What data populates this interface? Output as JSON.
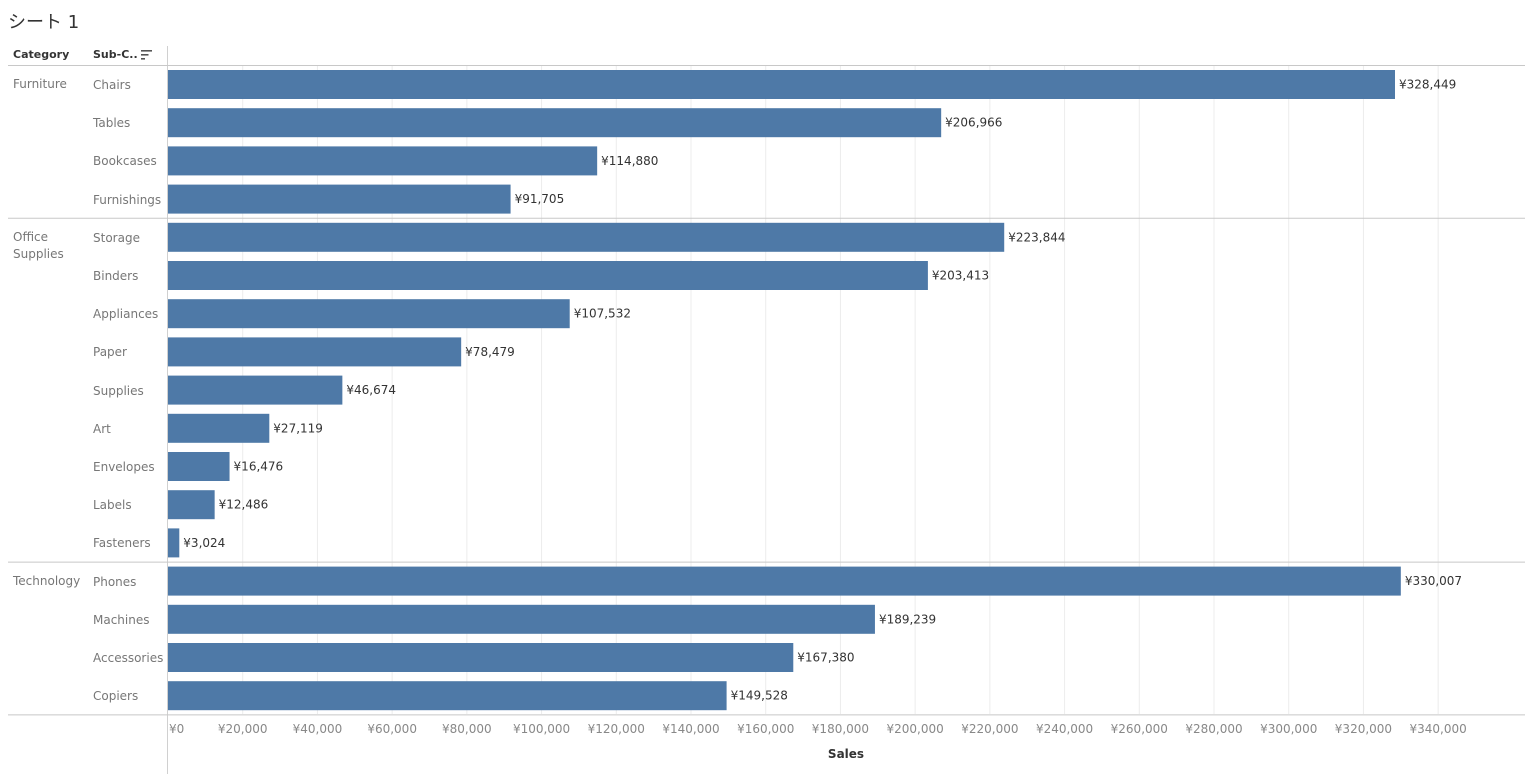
{
  "sheet": {
    "title": "シート 1"
  },
  "headers": {
    "category": "Category",
    "subcategory": "Sub-C.."
  },
  "colors": {
    "bar": "#4e79a7",
    "grid": "#ececec",
    "divider": "#c8c8c8",
    "label": "#333333",
    "axis_text": "#888888"
  },
  "chart_data": {
    "type": "bar",
    "orientation": "horizontal",
    "xlabel": "Sales",
    "xlim": [
      0,
      360000
    ],
    "x_ticks": [
      0,
      20000,
      40000,
      60000,
      80000,
      100000,
      120000,
      140000,
      160000,
      180000,
      200000,
      220000,
      240000,
      260000,
      280000,
      300000,
      320000,
      340000
    ],
    "x_tick_labels": [
      "¥0",
      "¥20,000",
      "¥40,000",
      "¥60,000",
      "¥80,000",
      "¥100,000",
      "¥120,000",
      "¥140,000",
      "¥160,000",
      "¥180,000",
      "¥200,000",
      "¥220,000",
      "¥240,000",
      "¥260,000",
      "¥280,000",
      "¥300,000",
      "¥320,000",
      "¥340,000"
    ],
    "groups": [
      {
        "category": "Furniture",
        "rows": [
          {
            "sub": "Chairs",
            "value": 328449,
            "label": "¥328,449"
          },
          {
            "sub": "Tables",
            "value": 206966,
            "label": "¥206,966"
          },
          {
            "sub": "Bookcases",
            "value": 114880,
            "label": "¥114,880"
          },
          {
            "sub": "Furnishings",
            "value": 91705,
            "label": "¥91,705"
          }
        ]
      },
      {
        "category": "Office Supplies",
        "rows": [
          {
            "sub": "Storage",
            "value": 223844,
            "label": "¥223,844"
          },
          {
            "sub": "Binders",
            "value": 203413,
            "label": "¥203,413"
          },
          {
            "sub": "Appliances",
            "value": 107532,
            "label": "¥107,532"
          },
          {
            "sub": "Paper",
            "value": 78479,
            "label": "¥78,479"
          },
          {
            "sub": "Supplies",
            "value": 46674,
            "label": "¥46,674"
          },
          {
            "sub": "Art",
            "value": 27119,
            "label": "¥27,119"
          },
          {
            "sub": "Envelopes",
            "value": 16476,
            "label": "¥16,476"
          },
          {
            "sub": "Labels",
            "value": 12486,
            "label": "¥12,486"
          },
          {
            "sub": "Fasteners",
            "value": 3024,
            "label": "¥3,024"
          }
        ]
      },
      {
        "category": "Technology",
        "rows": [
          {
            "sub": "Phones",
            "value": 330007,
            "label": "¥330,007"
          },
          {
            "sub": "Machines",
            "value": 189239,
            "label": "¥189,239"
          },
          {
            "sub": "Accessories",
            "value": 167380,
            "label": "¥167,380"
          },
          {
            "sub": "Copiers",
            "value": 149528,
            "label": "¥149,528"
          }
        ]
      }
    ]
  }
}
